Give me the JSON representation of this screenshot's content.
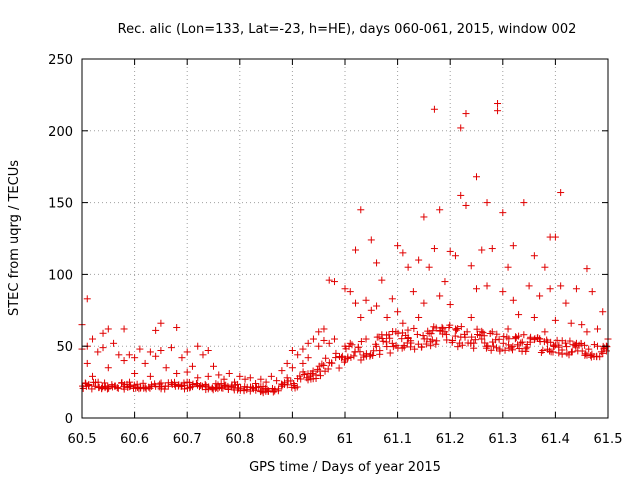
{
  "chart_data": {
    "type": "scatter",
    "title": "Rec. alic (Lon=133, Lat=-23, h=HE), days 060-061, 2015, window 002",
    "xlabel": "GPS time / Days of year 2015",
    "ylabel": "STEC from uqrg / TECUs",
    "xlim": [
      60.5,
      61.5
    ],
    "ylim": [
      0,
      250
    ],
    "xticks": [
      60.5,
      60.6,
      60.7,
      60.8,
      60.9,
      61,
      61.1,
      61.2,
      61.3,
      61.4,
      61.5
    ],
    "xtick_labels": [
      "60.5",
      "60.6",
      "60.7",
      "60.8",
      "60.9",
      "61",
      "61.1",
      "61.2",
      "61.3",
      "61.4",
      "61.5"
    ],
    "yticks": [
      0,
      50,
      100,
      150,
      200,
      250
    ],
    "ytick_labels": [
      "0",
      "50",
      "100",
      "150",
      "200",
      "250"
    ],
    "grid": true,
    "marker": "+",
    "color": "#e00000",
    "series": [
      {
        "name": "STEC",
        "points": [
          [
            60.5,
            65
          ],
          [
            60.5,
            48
          ],
          [
            60.51,
            83
          ],
          [
            60.51,
            50
          ],
          [
            60.51,
            38
          ],
          [
            60.52,
            55
          ],
          [
            60.52,
            29
          ],
          [
            60.53,
            46
          ],
          [
            60.54,
            59
          ],
          [
            60.54,
            49
          ],
          [
            60.55,
            62
          ],
          [
            60.55,
            35
          ],
          [
            60.56,
            52
          ],
          [
            60.57,
            44
          ],
          [
            60.58,
            62
          ],
          [
            60.58,
            40
          ],
          [
            60.59,
            44
          ],
          [
            60.6,
            42
          ],
          [
            60.6,
            31
          ],
          [
            60.61,
            48
          ],
          [
            60.62,
            38
          ],
          [
            60.63,
            46
          ],
          [
            60.63,
            29
          ],
          [
            60.64,
            61
          ],
          [
            60.64,
            43
          ],
          [
            60.65,
            66
          ],
          [
            60.65,
            47
          ],
          [
            60.66,
            35
          ],
          [
            60.67,
            49
          ],
          [
            60.68,
            63
          ],
          [
            60.68,
            31
          ],
          [
            60.69,
            42
          ],
          [
            60.7,
            46
          ],
          [
            60.7,
            32
          ],
          [
            60.71,
            36
          ],
          [
            60.72,
            50
          ],
          [
            60.72,
            28
          ],
          [
            60.73,
            44
          ],
          [
            60.74,
            47
          ],
          [
            60.74,
            29
          ],
          [
            60.75,
            36
          ],
          [
            60.76,
            30
          ],
          [
            60.77,
            27
          ],
          [
            60.78,
            31
          ],
          [
            60.79,
            25
          ],
          [
            60.8,
            29
          ],
          [
            60.81,
            27
          ],
          [
            60.82,
            28
          ],
          [
            60.83,
            24
          ],
          [
            60.84,
            27
          ],
          [
            60.85,
            25
          ],
          [
            60.86,
            29
          ],
          [
            60.87,
            26
          ],
          [
            60.88,
            33
          ],
          [
            60.89,
            38
          ],
          [
            60.89,
            28
          ],
          [
            60.9,
            47
          ],
          [
            60.9,
            35
          ],
          [
            60.91,
            44
          ],
          [
            60.92,
            48
          ],
          [
            60.92,
            38
          ],
          [
            60.93,
            52
          ],
          [
            60.93,
            42
          ],
          [
            60.94,
            55
          ],
          [
            60.95,
            60
          ],
          [
            60.95,
            50
          ],
          [
            60.96,
            62
          ],
          [
            60.96,
            54
          ],
          [
            60.97,
            96
          ],
          [
            60.97,
            52
          ],
          [
            60.98,
            95
          ],
          [
            60.98,
            55
          ],
          [
            61.0,
            90
          ],
          [
            61.0,
            50
          ],
          [
            61.01,
            88
          ],
          [
            61.01,
            52
          ],
          [
            61.02,
            117
          ],
          [
            61.02,
            80
          ],
          [
            61.03,
            145
          ],
          [
            61.03,
            70
          ],
          [
            61.04,
            82
          ],
          [
            61.04,
            55
          ],
          [
            61.05,
            124
          ],
          [
            61.05,
            75
          ],
          [
            61.06,
            108
          ],
          [
            61.06,
            78
          ],
          [
            61.07,
            96
          ],
          [
            61.07,
            58
          ],
          [
            61.08,
            70
          ],
          [
            61.09,
            83
          ],
          [
            61.09,
            52
          ],
          [
            61.1,
            120
          ],
          [
            61.1,
            74
          ],
          [
            61.11,
            115
          ],
          [
            61.11,
            66
          ],
          [
            61.12,
            105
          ],
          [
            61.12,
            56
          ],
          [
            61.13,
            88
          ],
          [
            61.14,
            110
          ],
          [
            61.14,
            70
          ],
          [
            61.15,
            140
          ],
          [
            61.15,
            80
          ],
          [
            61.16,
            105
          ],
          [
            61.16,
            59
          ],
          [
            61.17,
            215
          ],
          [
            61.17,
            118
          ],
          [
            61.18,
            145
          ],
          [
            61.18,
            85
          ],
          [
            61.19,
            95
          ],
          [
            61.19,
            60
          ],
          [
            61.2,
            116
          ],
          [
            61.2,
            79
          ],
          [
            61.21,
            113
          ],
          [
            61.21,
            62
          ],
          [
            61.22,
            202
          ],
          [
            61.22,
            155
          ],
          [
            61.23,
            212
          ],
          [
            61.23,
            148
          ],
          [
            61.24,
            106
          ],
          [
            61.24,
            70
          ],
          [
            61.25,
            168
          ],
          [
            61.25,
            90
          ],
          [
            61.26,
            117
          ],
          [
            61.26,
            55
          ],
          [
            61.27,
            150
          ],
          [
            61.27,
            92
          ],
          [
            61.28,
            118
          ],
          [
            61.28,
            60
          ],
          [
            61.29,
            219
          ],
          [
            61.29,
            214
          ],
          [
            61.3,
            143
          ],
          [
            61.3,
            88
          ],
          [
            61.31,
            105
          ],
          [
            61.31,
            62
          ],
          [
            61.32,
            120
          ],
          [
            61.32,
            82
          ],
          [
            61.33,
            72
          ],
          [
            61.34,
            150
          ],
          [
            61.34,
            58
          ],
          [
            61.35,
            92
          ],
          [
            61.36,
            113
          ],
          [
            61.36,
            70
          ],
          [
            61.37,
            85
          ],
          [
            61.37,
            55
          ],
          [
            61.38,
            105
          ],
          [
            61.38,
            60
          ],
          [
            61.39,
            126
          ],
          [
            61.39,
            90
          ],
          [
            61.4,
            126
          ],
          [
            61.4,
            68
          ],
          [
            61.41,
            157
          ],
          [
            61.41,
            92
          ],
          [
            61.42,
            80
          ],
          [
            61.43,
            66
          ],
          [
            61.44,
            90
          ],
          [
            61.44,
            52
          ],
          [
            61.45,
            65
          ],
          [
            61.46,
            104
          ],
          [
            61.46,
            60
          ],
          [
            61.47,
            88
          ],
          [
            61.48,
            62
          ],
          [
            61.48,
            50
          ],
          [
            61.49,
            74
          ],
          [
            61.49,
            45
          ],
          [
            61.5,
            55
          ]
        ]
      }
    ],
    "bands": [
      {
        "x": [
          60.5,
          60.7,
          60.8,
          60.85,
          60.9,
          61.0,
          61.1,
          61.2,
          61.3,
          61.4,
          61.5
        ],
        "lo": [
          20,
          20,
          19,
          17,
          20,
          37,
          47,
          50,
          46,
          45,
          40
        ],
        "hi": [
          25,
          25,
          24,
          22,
          28,
          50,
          62,
          66,
          58,
          55,
          50
        ]
      }
    ]
  }
}
